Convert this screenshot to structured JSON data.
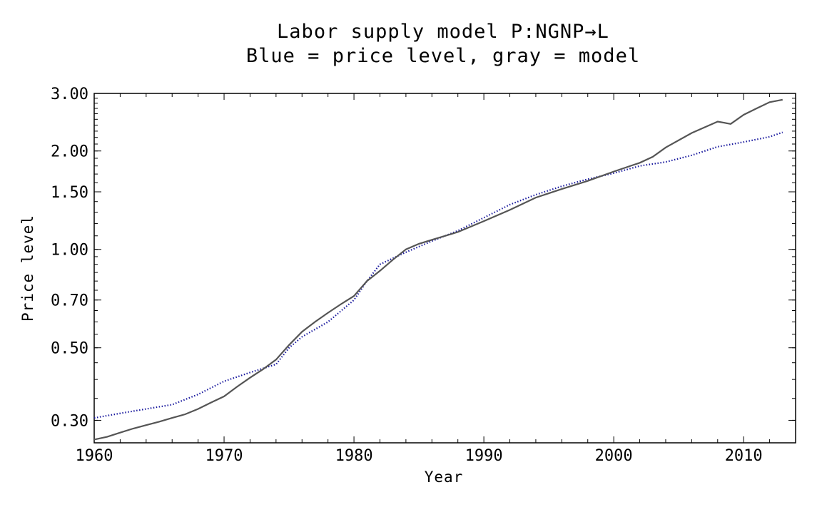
{
  "chart_data": {
    "type": "line",
    "title": "Labor supply model P:NGNP→L",
    "subtitle": "Blue = price level, gray = model",
    "xlabel": "Year",
    "ylabel": "Price level",
    "y_scale": "log",
    "xlim": [
      1960,
      2014
    ],
    "ylim": [
      0.256,
      3.0
    ],
    "x_ticks": [
      1960,
      1970,
      1980,
      1990,
      2000,
      2010
    ],
    "y_ticks": [
      {
        "value": 0.3,
        "label": "0.30"
      },
      {
        "value": 0.5,
        "label": "0.50"
      },
      {
        "value": 0.7,
        "label": "0.70"
      },
      {
        "value": 1.0,
        "label": "1.00"
      },
      {
        "value": 1.5,
        "label": "1.50"
      },
      {
        "value": 2.0,
        "label": "2.00"
      },
      {
        "value": 3.0,
        "label": "3.00"
      }
    ],
    "series": [
      {
        "color": "#1a1a9e",
        "style": "dotted",
        "x": [
          1960,
          1962,
          1964,
          1966,
          1968,
          1970,
          1972,
          1974,
          1975,
          1976,
          1978,
          1980,
          1981,
          1982,
          1984,
          1986,
          1988,
          1990,
          1992,
          1994,
          1996,
          1998,
          2000,
          2002,
          2004,
          2006,
          2008,
          2010,
          2012,
          2013
        ],
        "values": [
          0.305,
          0.315,
          0.325,
          0.335,
          0.36,
          0.395,
          0.42,
          0.445,
          0.5,
          0.54,
          0.6,
          0.7,
          0.8,
          0.9,
          0.98,
          1.06,
          1.14,
          1.25,
          1.37,
          1.47,
          1.56,
          1.64,
          1.71,
          1.8,
          1.85,
          1.94,
          2.06,
          2.13,
          2.21,
          2.28
        ]
      },
      {
        "color": "#555555",
        "style": "solid",
        "x": [
          1960,
          1961,
          1962,
          1963,
          1964,
          1965,
          1966,
          1967,
          1968,
          1969,
          1970,
          1971,
          1972,
          1973,
          1974,
          1975,
          1976,
          1977,
          1978,
          1979,
          1980,
          1981,
          1982,
          1983,
          1984,
          1985,
          1986,
          1988,
          1990,
          1992,
          1994,
          1996,
          1998,
          2000,
          2002,
          2003,
          2004,
          2006,
          2008,
          2009,
          2010,
          2011,
          2012,
          2013
        ],
        "values": [
          0.262,
          0.267,
          0.275,
          0.283,
          0.29,
          0.297,
          0.305,
          0.313,
          0.325,
          0.34,
          0.355,
          0.38,
          0.405,
          0.43,
          0.46,
          0.51,
          0.56,
          0.6,
          0.64,
          0.68,
          0.72,
          0.8,
          0.86,
          0.93,
          1.0,
          1.04,
          1.07,
          1.13,
          1.22,
          1.32,
          1.44,
          1.53,
          1.62,
          1.73,
          1.84,
          1.92,
          2.05,
          2.27,
          2.46,
          2.42,
          2.58,
          2.7,
          2.82,
          2.87
        ]
      }
    ]
  }
}
